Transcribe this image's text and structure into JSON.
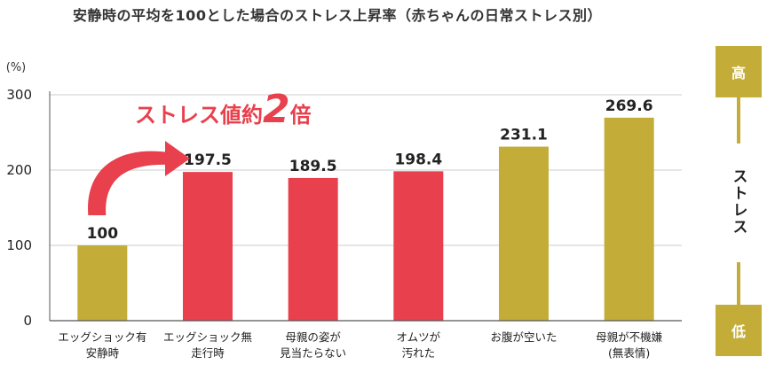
{
  "title": "安静時の平均を100とした場合のストレス上昇率（赤ちゃんの日常ストレス別）",
  "annotation": {
    "prefix": "ストレス値約",
    "number": "2",
    "suffix": "倍"
  },
  "side_scale": {
    "top_label": "高",
    "middle_label": "ストレス",
    "bottom_label": "低"
  },
  "colors": {
    "gold": "#c3ad38",
    "red": "#e8404d",
    "grid": "#cccccc",
    "axis": "#555555"
  },
  "chart_data": {
    "type": "bar",
    "title": "安静時の平均を100とした場合のストレス上昇率（赤ちゃんの日常ストレス別）",
    "ylabel": "(%)",
    "xlabel": "",
    "ylim": [
      0,
      300
    ],
    "yticks": [
      "0",
      "100",
      "200",
      "300"
    ],
    "grid": true,
    "categories": [
      [
        "エッグショック有",
        "安静時"
      ],
      [
        "エッグショック無",
        "走行時"
      ],
      [
        "母親の姿が",
        "見当たらない"
      ],
      [
        "オムツが",
        "汚れた"
      ],
      [
        "お腹が空いた"
      ],
      [
        "母親が不機嫌",
        "(無表情)"
      ]
    ],
    "values": [
      100,
      197.5,
      189.5,
      198.4,
      231.1,
      269.6
    ],
    "value_labels": [
      "100",
      "197.5",
      "189.5",
      "198.4",
      "231.1",
      "269.6"
    ],
    "bar_colors": [
      "#c3ad38",
      "#e8404d",
      "#e8404d",
      "#e8404d",
      "#c3ad38",
      "#c3ad38"
    ]
  }
}
